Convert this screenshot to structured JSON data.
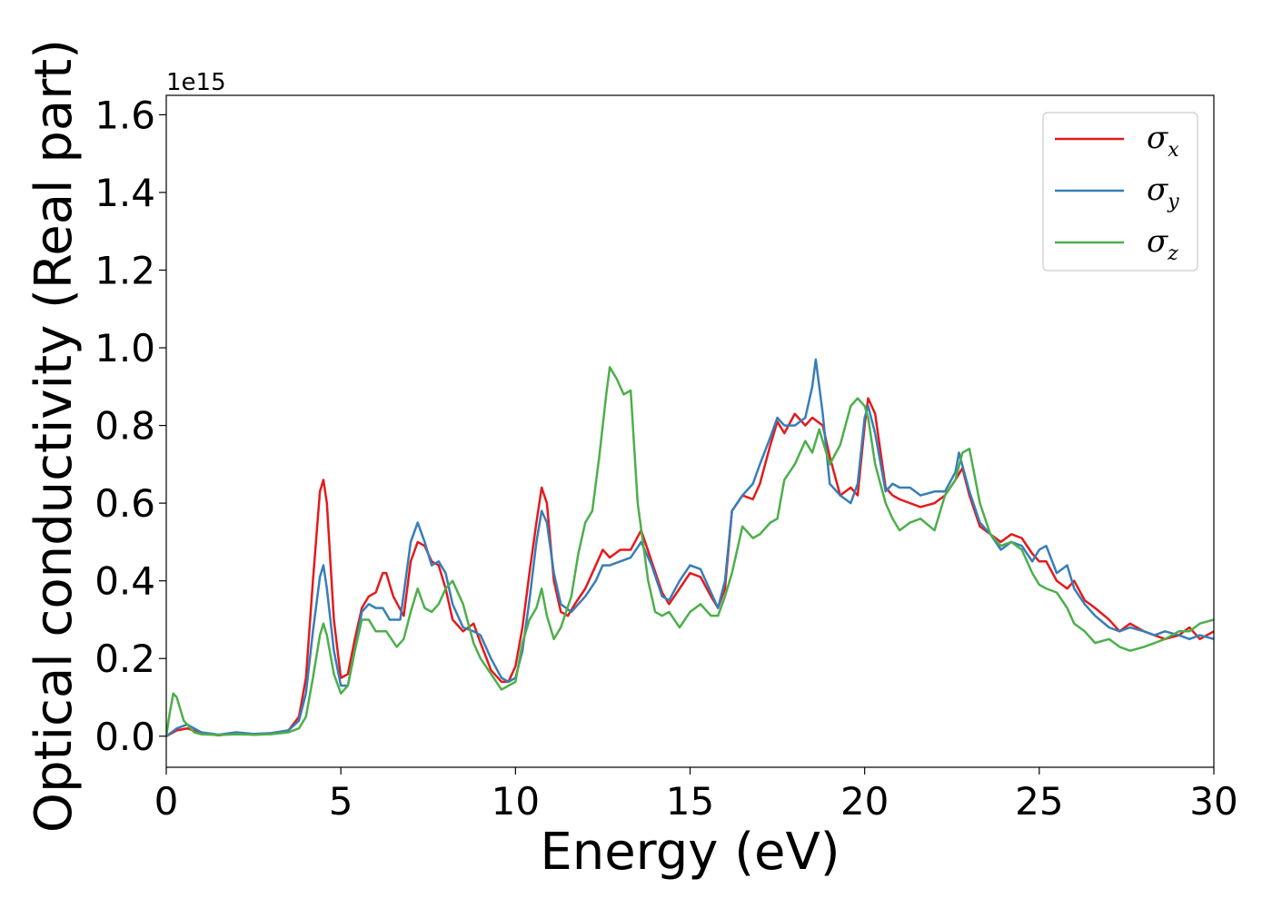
{
  "chart_data": {
    "type": "line",
    "xlabel": "Energy (eV)",
    "ylabel": "Optical conductivity (Real part)",
    "y_offset_label": "1e15",
    "xlim": [
      0,
      30
    ],
    "ylim": [
      -0.08,
      1.65
    ],
    "xticks": [
      0,
      5,
      10,
      15,
      20,
      25,
      30
    ],
    "xtick_labels": [
      "0",
      "5",
      "10",
      "15",
      "20",
      "25",
      "30"
    ],
    "yticks": [
      0.0,
      0.2,
      0.4,
      0.6,
      0.8,
      1.0,
      1.2,
      1.4,
      1.6
    ],
    "ytick_labels": [
      "0.0",
      "0.2",
      "0.4",
      "0.6",
      "0.8",
      "1.0",
      "1.2",
      "1.4",
      "1.6"
    ],
    "grid": false,
    "legend_position": "top-right",
    "series": [
      {
        "name": "σ",
        "subscript": "x",
        "color": "#e41a1c",
        "x": [
          0,
          0.3,
          0.6,
          1.0,
          1.5,
          2.0,
          2.5,
          3.0,
          3.5,
          3.8,
          4.0,
          4.2,
          4.4,
          4.5,
          4.6,
          4.8,
          5.0,
          5.2,
          5.4,
          5.6,
          5.8,
          6.0,
          6.2,
          6.3,
          6.5,
          6.8,
          7.0,
          7.2,
          7.4,
          7.6,
          7.8,
          8.0,
          8.2,
          8.5,
          8.8,
          9.0,
          9.3,
          9.6,
          9.8,
          10.0,
          10.2,
          10.4,
          10.6,
          10.75,
          10.9,
          11.1,
          11.3,
          11.5,
          11.7,
          12.0,
          12.3,
          12.5,
          12.7,
          13.0,
          13.3,
          13.6,
          13.9,
          14.2,
          14.4,
          14.7,
          15.0,
          15.3,
          15.6,
          15.8,
          16.0,
          16.2,
          16.5,
          16.8,
          17.0,
          17.3,
          17.5,
          17.7,
          18.0,
          18.3,
          18.5,
          18.8,
          19.0,
          19.3,
          19.6,
          19.8,
          20.0,
          20.1,
          20.3,
          20.6,
          20.8,
          21.0,
          21.3,
          21.6,
          22.0,
          22.3,
          22.6,
          22.8,
          23.0,
          23.3,
          23.6,
          23.9,
          24.2,
          24.5,
          24.8,
          25.0,
          25.2,
          25.5,
          25.8,
          26.0,
          26.3,
          26.6,
          27.0,
          27.3,
          27.6,
          28.0,
          28.3,
          28.6,
          29.0,
          29.3,
          29.6,
          30.0
        ],
        "y": [
          0,
          0.015,
          0.02,
          0.008,
          0.002,
          0.008,
          0.004,
          0.006,
          0.015,
          0.05,
          0.15,
          0.4,
          0.63,
          0.66,
          0.6,
          0.3,
          0.15,
          0.16,
          0.25,
          0.33,
          0.36,
          0.37,
          0.42,
          0.42,
          0.36,
          0.31,
          0.45,
          0.5,
          0.49,
          0.45,
          0.44,
          0.38,
          0.3,
          0.27,
          0.29,
          0.24,
          0.17,
          0.14,
          0.14,
          0.18,
          0.28,
          0.42,
          0.55,
          0.64,
          0.6,
          0.4,
          0.32,
          0.31,
          0.34,
          0.38,
          0.44,
          0.48,
          0.46,
          0.48,
          0.48,
          0.53,
          0.45,
          0.37,
          0.34,
          0.38,
          0.42,
          0.41,
          0.36,
          0.33,
          0.38,
          0.58,
          0.62,
          0.61,
          0.65,
          0.75,
          0.81,
          0.78,
          0.83,
          0.8,
          0.82,
          0.8,
          0.72,
          0.62,
          0.64,
          0.62,
          0.8,
          0.87,
          0.83,
          0.64,
          0.62,
          0.61,
          0.6,
          0.59,
          0.6,
          0.62,
          0.66,
          0.69,
          0.62,
          0.54,
          0.52,
          0.5,
          0.52,
          0.51,
          0.47,
          0.45,
          0.45,
          0.4,
          0.38,
          0.4,
          0.35,
          0.33,
          0.3,
          0.27,
          0.29,
          0.27,
          0.26,
          0.25,
          0.26,
          0.28,
          0.25,
          0.27
        ],
        "width": 2.5
      },
      {
        "name": "σ",
        "subscript": "y",
        "color": "#377eb8",
        "x": [
          0,
          0.3,
          0.6,
          1.0,
          1.5,
          2.0,
          2.5,
          3.0,
          3.5,
          3.8,
          4.0,
          4.2,
          4.4,
          4.5,
          4.6,
          4.8,
          5.0,
          5.2,
          5.4,
          5.6,
          5.8,
          6.0,
          6.2,
          6.4,
          6.7,
          7.0,
          7.2,
          7.4,
          7.6,
          7.8,
          8.0,
          8.2,
          8.5,
          8.8,
          9.0,
          9.3,
          9.6,
          9.8,
          10.0,
          10.2,
          10.4,
          10.6,
          10.75,
          10.9,
          11.1,
          11.3,
          11.6,
          12.0,
          12.3,
          12.5,
          12.7,
          13.0,
          13.3,
          13.6,
          13.9,
          14.2,
          14.4,
          14.7,
          15.0,
          15.3,
          15.6,
          15.8,
          16.0,
          16.2,
          16.5,
          16.8,
          17.0,
          17.3,
          17.5,
          17.7,
          18.0,
          18.3,
          18.5,
          18.6,
          18.8,
          19.0,
          19.3,
          19.6,
          19.8,
          20.0,
          20.1,
          20.3,
          20.6,
          20.8,
          21.0,
          21.3,
          21.6,
          22.0,
          22.3,
          22.6,
          22.7,
          23.0,
          23.3,
          23.6,
          23.9,
          24.2,
          24.5,
          24.8,
          25.0,
          25.2,
          25.5,
          25.8,
          26.0,
          26.3,
          26.6,
          27.0,
          27.3,
          27.6,
          28.0,
          28.3,
          28.6,
          29.0,
          29.3,
          29.6,
          30.0
        ],
        "y": [
          0,
          0.02,
          0.03,
          0.01,
          0.004,
          0.01,
          0.006,
          0.008,
          0.015,
          0.04,
          0.11,
          0.27,
          0.41,
          0.44,
          0.38,
          0.22,
          0.13,
          0.13,
          0.22,
          0.32,
          0.34,
          0.33,
          0.33,
          0.3,
          0.3,
          0.5,
          0.55,
          0.5,
          0.44,
          0.45,
          0.42,
          0.34,
          0.28,
          0.27,
          0.26,
          0.2,
          0.15,
          0.14,
          0.15,
          0.22,
          0.35,
          0.5,
          0.58,
          0.55,
          0.42,
          0.34,
          0.32,
          0.36,
          0.4,
          0.44,
          0.44,
          0.45,
          0.46,
          0.5,
          0.44,
          0.36,
          0.35,
          0.4,
          0.44,
          0.43,
          0.37,
          0.33,
          0.4,
          0.58,
          0.62,
          0.65,
          0.7,
          0.77,
          0.82,
          0.8,
          0.8,
          0.82,
          0.9,
          0.97,
          0.83,
          0.65,
          0.62,
          0.6,
          0.65,
          0.82,
          0.85,
          0.78,
          0.63,
          0.65,
          0.64,
          0.64,
          0.62,
          0.63,
          0.63,
          0.68,
          0.73,
          0.63,
          0.55,
          0.52,
          0.48,
          0.5,
          0.49,
          0.45,
          0.48,
          0.49,
          0.42,
          0.44,
          0.38,
          0.34,
          0.31,
          0.28,
          0.27,
          0.28,
          0.27,
          0.26,
          0.27,
          0.26,
          0.25,
          0.26,
          0.25
        ],
        "width": 2.5
      },
      {
        "name": "σ",
        "subscript": "z",
        "color": "#4daf4a",
        "x": [
          0,
          0.1,
          0.2,
          0.3,
          0.5,
          0.8,
          1.0,
          1.5,
          2.0,
          2.5,
          3.0,
          3.5,
          3.8,
          4.0,
          4.2,
          4.4,
          4.5,
          4.6,
          4.8,
          5.0,
          5.2,
          5.4,
          5.6,
          5.8,
          6.0,
          6.3,
          6.6,
          6.8,
          7.0,
          7.2,
          7.4,
          7.6,
          7.8,
          8.0,
          8.2,
          8.5,
          8.8,
          9.0,
          9.3,
          9.6,
          9.8,
          10.0,
          10.2,
          10.4,
          10.6,
          10.75,
          10.9,
          11.1,
          11.3,
          11.6,
          11.8,
          12.0,
          12.2,
          12.4,
          12.6,
          12.7,
          12.9,
          13.1,
          13.3,
          13.5,
          13.8,
          14.0,
          14.2,
          14.4,
          14.7,
          15.0,
          15.3,
          15.6,
          15.8,
          16.0,
          16.2,
          16.5,
          16.8,
          17.0,
          17.3,
          17.5,
          17.7,
          18.0,
          18.3,
          18.5,
          18.7,
          19.0,
          19.3,
          19.6,
          19.8,
          20.0,
          20.1,
          20.3,
          20.6,
          20.8,
          21.0,
          21.3,
          21.6,
          22.0,
          22.3,
          22.6,
          22.8,
          23.0,
          23.3,
          23.6,
          23.9,
          24.2,
          24.5,
          24.8,
          25.0,
          25.2,
          25.5,
          25.8,
          26.0,
          26.3,
          26.6,
          27.0,
          27.3,
          27.6,
          28.0,
          28.3,
          28.6,
          29.0,
          29.3,
          29.6,
          30.0
        ],
        "y": [
          0,
          0.06,
          0.11,
          0.1,
          0.04,
          0.01,
          0.005,
          0.003,
          0.005,
          0.004,
          0.005,
          0.01,
          0.02,
          0.05,
          0.15,
          0.26,
          0.29,
          0.26,
          0.16,
          0.11,
          0.13,
          0.22,
          0.3,
          0.3,
          0.27,
          0.27,
          0.23,
          0.25,
          0.32,
          0.38,
          0.33,
          0.32,
          0.34,
          0.38,
          0.4,
          0.34,
          0.24,
          0.2,
          0.16,
          0.12,
          0.13,
          0.14,
          0.24,
          0.3,
          0.33,
          0.38,
          0.31,
          0.25,
          0.28,
          0.36,
          0.47,
          0.55,
          0.58,
          0.72,
          0.88,
          0.95,
          0.92,
          0.88,
          0.89,
          0.6,
          0.4,
          0.32,
          0.31,
          0.32,
          0.28,
          0.32,
          0.34,
          0.31,
          0.31,
          0.36,
          0.42,
          0.54,
          0.51,
          0.52,
          0.55,
          0.56,
          0.66,
          0.7,
          0.76,
          0.73,
          0.79,
          0.7,
          0.75,
          0.85,
          0.87,
          0.85,
          0.82,
          0.7,
          0.6,
          0.56,
          0.53,
          0.55,
          0.56,
          0.53,
          0.62,
          0.66,
          0.73,
          0.74,
          0.6,
          0.52,
          0.49,
          0.5,
          0.48,
          0.42,
          0.39,
          0.38,
          0.37,
          0.33,
          0.29,
          0.27,
          0.24,
          0.25,
          0.23,
          0.22,
          0.23,
          0.24,
          0.25,
          0.27,
          0.27,
          0.29,
          0.3
        ],
        "width": 2.5
      }
    ]
  }
}
